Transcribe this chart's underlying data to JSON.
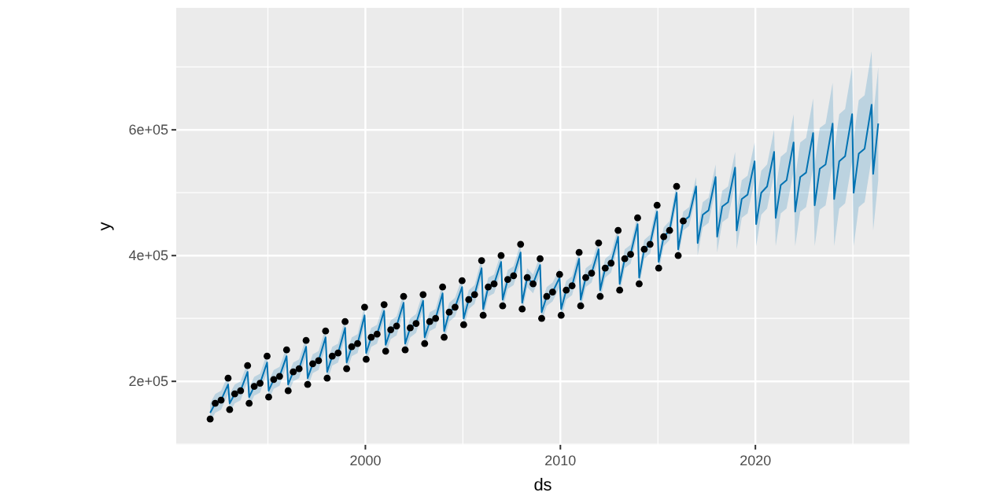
{
  "chart_data": {
    "type": "line",
    "xlabel": "ds",
    "ylabel": "y",
    "xlim": [
      1990.3,
      2027.9
    ],
    "xticks": [
      2000,
      2010,
      2020
    ],
    "ylim": [
      99000,
      794000
    ],
    "yticks": [
      {
        "value": 200000,
        "label": "2e+05"
      },
      {
        "value": 400000,
        "label": "4e+05"
      },
      {
        "value": 600000,
        "label": "6e+05"
      }
    ],
    "grid": true,
    "series": [
      {
        "color": "#0072b2",
        "x": [
          1992.04,
          1992.3,
          1992.6,
          1992.96,
          1993.04,
          1993.3,
          1993.6,
          1993.96,
          1994.04,
          1994.3,
          1994.6,
          1994.96,
          1995.04,
          1995.3,
          1995.6,
          1995.96,
          1996.04,
          1996.3,
          1996.6,
          1996.96,
          1997.04,
          1997.3,
          1997.6,
          1997.96,
          1998.04,
          1998.3,
          1998.6,
          1998.96,
          1999.04,
          1999.3,
          1999.6,
          1999.96,
          2000.04,
          2000.3,
          2000.6,
          2000.96,
          2001.04,
          2001.3,
          2001.6,
          2001.96,
          2002.04,
          2002.3,
          2002.6,
          2002.96,
          2003.04,
          2003.3,
          2003.6,
          2003.96,
          2004.04,
          2004.3,
          2004.6,
          2004.96,
          2005.04,
          2005.3,
          2005.6,
          2005.96,
          2006.04,
          2006.3,
          2006.6,
          2006.96,
          2007.04,
          2007.3,
          2007.6,
          2007.96,
          2008.04,
          2008.3,
          2008.6,
          2008.96,
          2009.04,
          2009.3,
          2009.6,
          2009.96,
          2010.04,
          2010.3,
          2010.6,
          2010.96,
          2011.04,
          2011.3,
          2011.6,
          2011.96,
          2012.04,
          2012.3,
          2012.6,
          2012.96,
          2013.04,
          2013.3,
          2013.6,
          2013.96,
          2014.04,
          2014.3,
          2014.6,
          2014.96,
          2015.04,
          2015.3,
          2015.6,
          2015.96,
          2016.04,
          2016.3,
          2016.6,
          2016.96,
          2017.04,
          2017.3,
          2017.6,
          2017.96,
          2018.04,
          2018.3,
          2018.6,
          2018.96,
          2019.04,
          2019.3,
          2019.6,
          2019.96,
          2020.04,
          2020.3,
          2020.6,
          2020.96,
          2021.04,
          2021.3,
          2021.6,
          2021.96,
          2022.04,
          2022.3,
          2022.6,
          2022.96,
          2023.04,
          2023.3,
          2023.6,
          2023.96,
          2024.04,
          2024.3,
          2024.6,
          2024.96,
          2025.04,
          2025.3,
          2025.6,
          2025.96,
          2026.04,
          2026.3
        ],
        "values": [
          150000,
          165000,
          170000,
          195000,
          165000,
          180000,
          185000,
          215000,
          175000,
          192000,
          197000,
          230000,
          185000,
          203000,
          208000,
          240000,
          195000,
          215000,
          220000,
          255000,
          205000,
          228000,
          233000,
          270000,
          215000,
          240000,
          245000,
          285000,
          230000,
          255000,
          260000,
          305000,
          245000,
          270000,
          275000,
          312000,
          258000,
          282000,
          288000,
          325000,
          260000,
          285000,
          292000,
          328000,
          270000,
          295000,
          300000,
          340000,
          280000,
          310000,
          318000,
          350000,
          300000,
          330000,
          338000,
          380000,
          315000,
          350000,
          355000,
          390000,
          330000,
          362000,
          368000,
          405000,
          325000,
          365000,
          355000,
          385000,
          310000,
          335000,
          342000,
          365000,
          315000,
          345000,
          352000,
          395000,
          330000,
          365000,
          372000,
          410000,
          345000,
          380000,
          388000,
          430000,
          355000,
          395000,
          402000,
          450000,
          365000,
          410000,
          418000,
          470000,
          390000,
          430000,
          440000,
          500000,
          410000,
          455000,
          462000,
          510000,
          420000,
          465000,
          472000,
          525000,
          430000,
          478000,
          485000,
          540000,
          440000,
          490000,
          497000,
          550000,
          450000,
          500000,
          510000,
          565000,
          460000,
          512000,
          520000,
          580000,
          470000,
          525000,
          532000,
          595000,
          480000,
          538000,
          545000,
          610000,
          490000,
          550000,
          558000,
          625000,
          500000,
          562000,
          570000,
          640000,
          530000,
          610000
        ],
        "lower": [
          135000,
          150000,
          155000,
          180000,
          150000,
          165000,
          170000,
          200000,
          160000,
          177000,
          182000,
          215000,
          170000,
          188000,
          193000,
          225000,
          180000,
          200000,
          205000,
          240000,
          190000,
          213000,
          218000,
          255000,
          200000,
          225000,
          230000,
          270000,
          215000,
          240000,
          245000,
          290000,
          230000,
          255000,
          260000,
          297000,
          243000,
          267000,
          273000,
          310000,
          245000,
          270000,
          277000,
          313000,
          255000,
          280000,
          285000,
          325000,
          265000,
          295000,
          303000,
          335000,
          285000,
          315000,
          323000,
          365000,
          300000,
          335000,
          340000,
          375000,
          315000,
          347000,
          353000,
          390000,
          310000,
          350000,
          340000,
          370000,
          295000,
          320000,
          327000,
          350000,
          300000,
          330000,
          337000,
          380000,
          315000,
          350000,
          357000,
          395000,
          330000,
          365000,
          373000,
          415000,
          340000,
          380000,
          387000,
          435000,
          350000,
          395000,
          403000,
          455000,
          375000,
          415000,
          425000,
          485000,
          395000,
          440000,
          447000,
          495000,
          400000,
          445000,
          452000,
          505000,
          405000,
          453000,
          460000,
          515000,
          410000,
          460000,
          467000,
          520000,
          415000,
          465000,
          475000,
          530000,
          415000,
          467000,
          475000,
          535000,
          415000,
          470000,
          477000,
          540000,
          415000,
          473000,
          480000,
          545000,
          415000,
          475000,
          483000,
          550000,
          415000,
          477000,
          485000,
          555000,
          440000,
          520000
        ],
        "upper": [
          165000,
          180000,
          185000,
          210000,
          180000,
          195000,
          200000,
          230000,
          190000,
          207000,
          212000,
          245000,
          200000,
          218000,
          223000,
          255000,
          210000,
          230000,
          235000,
          270000,
          220000,
          243000,
          248000,
          285000,
          230000,
          255000,
          260000,
          300000,
          245000,
          270000,
          275000,
          320000,
          260000,
          285000,
          290000,
          327000,
          273000,
          297000,
          303000,
          340000,
          275000,
          300000,
          307000,
          343000,
          285000,
          310000,
          315000,
          355000,
          295000,
          325000,
          333000,
          365000,
          315000,
          345000,
          353000,
          395000,
          330000,
          365000,
          370000,
          405000,
          345000,
          377000,
          383000,
          420000,
          340000,
          380000,
          370000,
          400000,
          325000,
          350000,
          357000,
          380000,
          330000,
          360000,
          367000,
          410000,
          345000,
          380000,
          387000,
          425000,
          360000,
          395000,
          403000,
          445000,
          370000,
          410000,
          417000,
          465000,
          380000,
          425000,
          433000,
          485000,
          405000,
          445000,
          455000,
          515000,
          425000,
          470000,
          477000,
          525000,
          440000,
          485000,
          492000,
          545000,
          455000,
          503000,
          510000,
          565000,
          470000,
          520000,
          527000,
          580000,
          485000,
          535000,
          545000,
          600000,
          505000,
          557000,
          565000,
          625000,
          525000,
          580000,
          587000,
          650000,
          545000,
          603000,
          610000,
          675000,
          565000,
          625000,
          633000,
          700000,
          585000,
          647000,
          655000,
          725000,
          620000,
          700000
        ]
      },
      {
        "type": "scatter",
        "color": "#000000",
        "marker": "circle",
        "x": [
          1992.04,
          1992.3,
          1992.6,
          1992.96,
          1993.04,
          1993.3,
          1993.6,
          1993.96,
          1994.04,
          1994.3,
          1994.6,
          1994.96,
          1995.04,
          1995.3,
          1995.6,
          1995.96,
          1996.04,
          1996.3,
          1996.6,
          1996.96,
          1997.04,
          1997.3,
          1997.6,
          1997.96,
          1998.04,
          1998.3,
          1998.6,
          1998.96,
          1999.04,
          1999.3,
          1999.6,
          1999.96,
          2000.04,
          2000.3,
          2000.6,
          2000.96,
          2001.04,
          2001.3,
          2001.6,
          2001.96,
          2002.04,
          2002.3,
          2002.6,
          2002.96,
          2003.04,
          2003.3,
          2003.6,
          2003.96,
          2004.04,
          2004.3,
          2004.6,
          2004.96,
          2005.04,
          2005.3,
          2005.6,
          2005.96,
          2006.04,
          2006.3,
          2006.6,
          2006.96,
          2007.04,
          2007.3,
          2007.6,
          2007.96,
          2008.04,
          2008.3,
          2008.6,
          2008.96,
          2009.04,
          2009.3,
          2009.6,
          2009.96,
          2010.04,
          2010.3,
          2010.6,
          2010.96,
          2011.04,
          2011.3,
          2011.6,
          2011.96,
          2012.04,
          2012.3,
          2012.6,
          2012.96,
          2013.04,
          2013.3,
          2013.6,
          2013.96,
          2014.04,
          2014.3,
          2014.6,
          2014.96,
          2015.04,
          2015.3,
          2015.6,
          2015.96,
          2016.04,
          2016.3
        ],
        "values": [
          140000,
          165000,
          170000,
          205000,
          155000,
          180000,
          185000,
          225000,
          165000,
          192000,
          197000,
          240000,
          175000,
          203000,
          208000,
          250000,
          185000,
          215000,
          220000,
          265000,
          195000,
          228000,
          233000,
          280000,
          205000,
          240000,
          245000,
          295000,
          220000,
          255000,
          260000,
          318000,
          235000,
          270000,
          275000,
          322000,
          248000,
          282000,
          288000,
          335000,
          250000,
          285000,
          292000,
          338000,
          260000,
          295000,
          300000,
          350000,
          270000,
          310000,
          318000,
          360000,
          290000,
          330000,
          338000,
          392000,
          305000,
          350000,
          355000,
          400000,
          320000,
          362000,
          368000,
          418000,
          315000,
          365000,
          355000,
          395000,
          300000,
          335000,
          342000,
          370000,
          305000,
          345000,
          352000,
          405000,
          320000,
          365000,
          372000,
          420000,
          335000,
          380000,
          388000,
          440000,
          345000,
          395000,
          402000,
          460000,
          355000,
          410000,
          418000,
          480000,
          380000,
          430000,
          440000,
          510000,
          400000,
          455000
        ]
      }
    ]
  }
}
